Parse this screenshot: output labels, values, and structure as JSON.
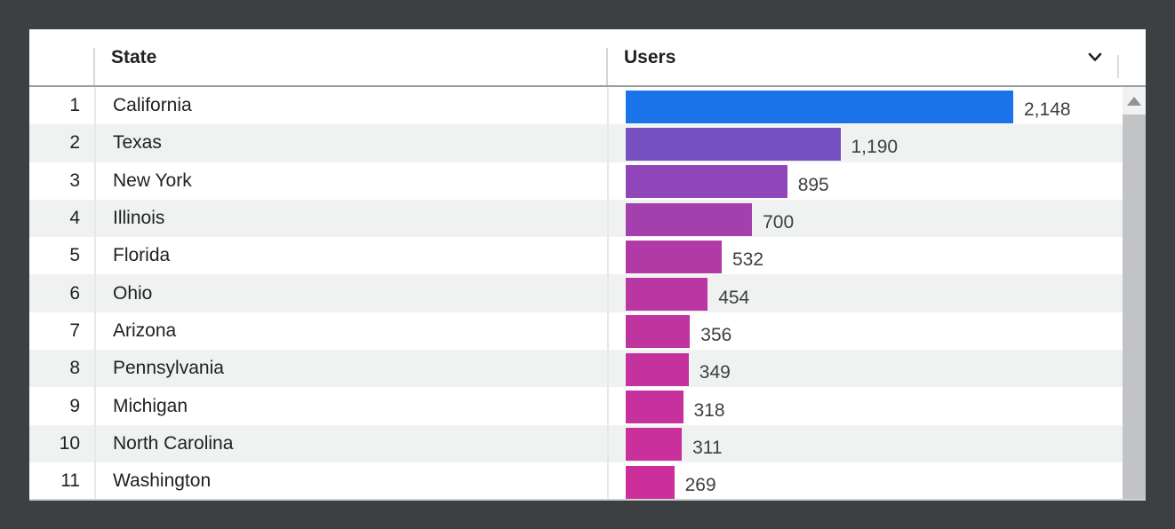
{
  "window": {
    "frame_color": "#3c4043",
    "card_bg": "#ffffff"
  },
  "table": {
    "header": {
      "state_label": "State",
      "users_label": "Users",
      "collapse_icon": "chevron-down-icon"
    },
    "max_users": 2148,
    "rows": [
      {
        "rank": "1",
        "state": "California",
        "users": 2148,
        "users_display": "2,148",
        "bar_color": "#1a73e8"
      },
      {
        "rank": "2",
        "state": "Texas",
        "users": 1190,
        "users_display": "1,190",
        "bar_color": "#7450c0"
      },
      {
        "rank": "3",
        "state": "New York",
        "users": 895,
        "users_display": "895",
        "bar_color": "#9046b8"
      },
      {
        "rank": "4",
        "state": "Illinois",
        "users": 700,
        "users_display": "700",
        "bar_color": "#a43fae"
      },
      {
        "rank": "5",
        "state": "Florida",
        "users": 532,
        "users_display": "532",
        "bar_color": "#b23aa7"
      },
      {
        "rank": "6",
        "state": "Ohio",
        "users": 454,
        "users_display": "454",
        "bar_color": "#ba36a3"
      },
      {
        "rank": "7",
        "state": "Arizona",
        "users": 356,
        "users_display": "356",
        "bar_color": "#c034a0"
      },
      {
        "rank": "8",
        "state": "Pennsylvania",
        "users": 349,
        "users_display": "349",
        "bar_color": "#c4329e"
      },
      {
        "rank": "9",
        "state": "Michigan",
        "users": 318,
        "users_display": "318",
        "bar_color": "#c7319d"
      },
      {
        "rank": "10",
        "state": "North Carolina",
        "users": 311,
        "users_display": "311",
        "bar_color": "#ca309c"
      },
      {
        "rank": "11",
        "state": "Washington",
        "users": 269,
        "users_display": "269",
        "bar_color": "#cc2f9b"
      }
    ]
  },
  "scrollbar": {
    "thumb_color": "#c2c3c5",
    "track_color": "#f1f1f1",
    "arrow_color": "#8f9397"
  },
  "chart_data": {
    "type": "bar",
    "orientation": "horizontal",
    "categories": [
      "California",
      "Texas",
      "New York",
      "Illinois",
      "Florida",
      "Ohio",
      "Arizona",
      "Pennsylvania",
      "Michigan",
      "North Carolina",
      "Washington"
    ],
    "values": [
      2148,
      1190,
      895,
      700,
      532,
      454,
      356,
      349,
      318,
      311,
      269
    ],
    "value_labels": [
      "2,148",
      "1,190",
      "895",
      "700",
      "532",
      "454",
      "356",
      "349",
      "318",
      "311",
      "269"
    ],
    "series_name": "Users",
    "xlabel": "Users",
    "ylabel": "State",
    "xlim": [
      0,
      2148
    ],
    "grid": false,
    "legend": false,
    "bar_colors": [
      "#1a73e8",
      "#7450c0",
      "#9046b8",
      "#a43fae",
      "#b23aa7",
      "#ba36a3",
      "#c034a0",
      "#c4329e",
      "#c7319d",
      "#ca309c",
      "#cc2f9b"
    ]
  }
}
